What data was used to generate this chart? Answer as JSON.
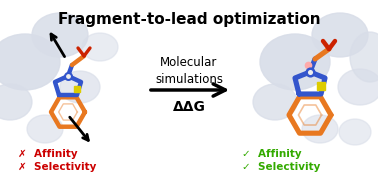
{
  "title": "Fragment-to-lead optimization",
  "title_fontsize": 11,
  "title_fontweight": "bold",
  "arrow_text1": "Molecular\nsimulations",
  "arrow_text2": "ΔΔG",
  "left_labels": [
    "✗  Affinity",
    "✗  Selectivity"
  ],
  "right_labels": [
    "✓  Affinity",
    "✓  Selectivity"
  ],
  "left_label_colors": [
    "#cc0000",
    "#cc0000"
  ],
  "right_label_colors": [
    "#33aa00",
    "#33aa00"
  ],
  "bg_color": "#ffffff",
  "blob_color": "#d8dde8",
  "mol_orange": "#e87820",
  "mol_blue": "#3355cc",
  "mol_yellow": "#ddcc00",
  "mol_red": "#cc2200",
  "mol_white": "#eeeeee",
  "mol_pink": "#ffaaaa",
  "label_fontsize": 7.5,
  "middle_fontsize": 8.5
}
